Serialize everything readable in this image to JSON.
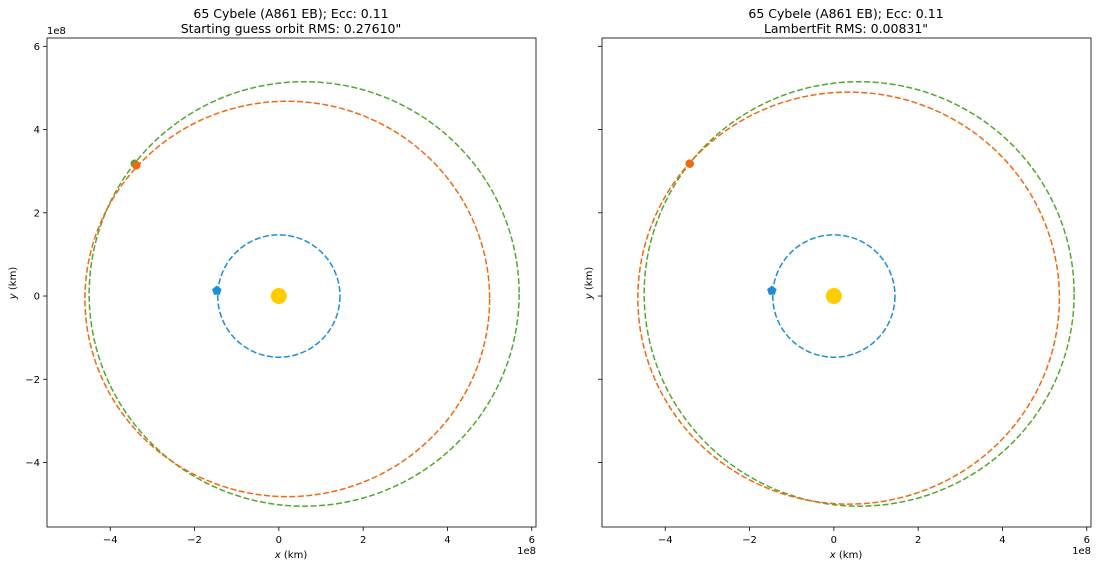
{
  "chart_data": [
    {
      "type": "line",
      "title": "65 Cybele (A861 EB); Ecc: 0.11",
      "subtitle": "Starting guess orbit RMS: 0.27610\"",
      "xlabel_var": "x",
      "xlabel_unit": " (km)",
      "ylabel_var": "y",
      "ylabel_unit": " (km)",
      "offset_text_x": "1e8",
      "offset_text_y": "1e8",
      "xlim": [
        -5.5,
        6.1
      ],
      "ylim": [
        -5.55,
        6.2
      ],
      "xticks": [
        -4,
        -2,
        0,
        2,
        4,
        6
      ],
      "yticks": [
        -4,
        -2,
        0,
        2,
        4,
        6
      ],
      "tick_labels": [
        "−4",
        "−2",
        "0",
        "2",
        "4",
        "6"
      ],
      "sun": {
        "x": 0,
        "y": 0,
        "color": "#ffcc00"
      },
      "series": [
        {
          "cx": 0,
          "cy": 0,
          "rx": 1.45,
          "ry": 1.47,
          "color": "#1f8dd6"
        },
        {
          "cx": 0.6,
          "cy": 0.05,
          "rx": 5.1,
          "ry": 5.1,
          "color": "#55a630"
        },
        {
          "cx": 0.2,
          "cy": -0.07,
          "rx": 4.8,
          "ry": 4.75,
          "color": "#ee6a13"
        }
      ],
      "markers": [
        {
          "x": -1.47,
          "y": 0.13,
          "color": "#1f8dd6",
          "shape": "pentagon"
        },
        {
          "x": -3.42,
          "y": 3.18,
          "color": "#55a630",
          "shape": "circle"
        },
        {
          "x": -3.38,
          "y": 3.14,
          "color": "#ee6a13",
          "shape": "circle"
        }
      ]
    },
    {
      "type": "line",
      "title": "65 Cybele (A861 EB); Ecc: 0.11",
      "subtitle": "LambertFit RMS: 0.00831\"",
      "xlabel_var": "x",
      "xlabel_unit": " (km)",
      "ylabel_var": "y",
      "ylabel_unit": " (km)",
      "offset_text_x": "1e8",
      "offset_text_y": "",
      "xlim": [
        -5.5,
        6.1
      ],
      "ylim": [
        -5.55,
        6.2
      ],
      "xticks": [
        -4,
        -2,
        0,
        2,
        4,
        6
      ],
      "yticks": [
        -4,
        -2,
        0,
        2,
        4,
        6
      ],
      "tick_labels": [
        "−4",
        "−2",
        "0",
        "2",
        "4",
        "6"
      ],
      "show_ytick_labels": false,
      "sun": {
        "x": 0,
        "y": 0,
        "color": "#ffcc00"
      },
      "series": [
        {
          "cx": 0,
          "cy": 0,
          "rx": 1.45,
          "ry": 1.47,
          "color": "#1f8dd6"
        },
        {
          "cx": 0.6,
          "cy": 0.05,
          "rx": 5.1,
          "ry": 5.1,
          "color": "#55a630"
        },
        {
          "cx": 0.35,
          "cy": -0.05,
          "rx": 5.0,
          "ry": 4.95,
          "color": "#ee6a13"
        }
      ],
      "markers": [
        {
          "x": -1.47,
          "y": 0.13,
          "color": "#1f8dd6",
          "shape": "pentagon"
        },
        {
          "x": -3.42,
          "y": 3.18,
          "color": "#55a630",
          "shape": "circle"
        },
        {
          "x": -3.42,
          "y": 3.18,
          "color": "#ee6a13",
          "shape": "circle"
        }
      ]
    }
  ]
}
